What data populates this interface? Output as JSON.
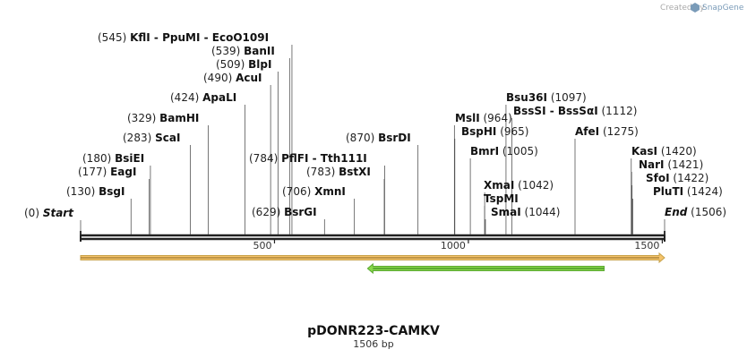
{
  "credit": {
    "prefix": "Created by",
    "brand": "SnapGene"
  },
  "sequence": {
    "name": "pDONR223-CAMKV",
    "length_label": "1506 bp",
    "length": 1506
  },
  "axis": {
    "ticks": [
      {
        "pos": 500,
        "label": "500"
      },
      {
        "pos": 1000,
        "label": "1000"
      },
      {
        "pos": 1500,
        "label": "1500"
      }
    ]
  },
  "features": [
    {
      "name": "orange-feature",
      "start": 0,
      "end": 1506,
      "color": "#f5c36b",
      "border": "#c8a24a",
      "direction": "forward"
    },
    {
      "name": "green-feature",
      "start": 740,
      "end": 1350,
      "color": "#88d84a",
      "border": "#5aa832",
      "direction": "reverse"
    }
  ],
  "sites": [
    {
      "id": "start",
      "pos": 0,
      "pos_label": "(0)",
      "text": "Start",
      "italic": true
    },
    {
      "id": "bsgi",
      "pos": 130,
      "pos_label": "(130)",
      "text": "BsgI"
    },
    {
      "id": "eagi",
      "pos": 177,
      "pos_label": "(177)",
      "text": "EagI"
    },
    {
      "id": "bsiei",
      "pos": 180,
      "pos_label": "(180)",
      "text": "BsiEI"
    },
    {
      "id": "scai",
      "pos": 283,
      "pos_label": "(283)",
      "text": "ScaI"
    },
    {
      "id": "bamhi",
      "pos": 329,
      "pos_label": "(329)",
      "text": "BamHI"
    },
    {
      "id": "apali",
      "pos": 424,
      "pos_label": "(424)",
      "text": "ApaLI"
    },
    {
      "id": "acui",
      "pos": 490,
      "pos_label": "(490)",
      "text": "AcuI"
    },
    {
      "id": "blpi",
      "pos": 509,
      "pos_label": "(509)",
      "text": "BlpI"
    },
    {
      "id": "banii",
      "pos": 539,
      "pos_label": "(539)",
      "text": "BanII"
    },
    {
      "id": "kfli",
      "pos": 545,
      "pos_label": "(545)",
      "text": "KflI  -  PpuMI  -  EcoO109I"
    },
    {
      "id": "bsrgi",
      "pos": 629,
      "pos_label": "(629)",
      "text": "BsrGI"
    },
    {
      "id": "xmni",
      "pos": 706,
      "pos_label": "(706)",
      "text": "XmnI"
    },
    {
      "id": "bstxi",
      "pos": 783,
      "pos_label": "(783)",
      "text": "BstXI"
    },
    {
      "id": "pflfi",
      "pos": 784,
      "pos_label": "(784)",
      "text": "PflFI  -  Tth111I"
    },
    {
      "id": "bsrdi",
      "pos": 870,
      "pos_label": "(870)",
      "text": "BsrDI"
    },
    {
      "id": "msli",
      "pos": 964,
      "pos_label": "(964)",
      "text": "MslI"
    },
    {
      "id": "bsphi",
      "pos": 965,
      "pos_label": "(965)",
      "text": "BspHI"
    },
    {
      "id": "bmri",
      "pos": 1005,
      "pos_label": "(1005)",
      "text": "BmrI"
    },
    {
      "id": "xmai",
      "pos": 1042,
      "pos_label": "(1042)",
      "text": "XmaI"
    },
    {
      "id": "tspmi",
      "pos": 1042,
      "pos_label": "",
      "text": "TspMI"
    },
    {
      "id": "smai",
      "pos": 1044,
      "pos_label": "(1044)",
      "text": "SmaI"
    },
    {
      "id": "bsu36i",
      "pos": 1097,
      "pos_label": "(1097)",
      "text": "Bsu36I"
    },
    {
      "id": "bsssi",
      "pos": 1112,
      "pos_label": "(1112)",
      "text": "BssSI  -  BssSαI"
    },
    {
      "id": "afei",
      "pos": 1275,
      "pos_label": "(1275)",
      "text": "AfeI"
    },
    {
      "id": "kasi",
      "pos": 1420,
      "pos_label": "(1420)",
      "text": "KasI"
    },
    {
      "id": "nari",
      "pos": 1421,
      "pos_label": "(1421)",
      "text": "NarI"
    },
    {
      "id": "sfoi",
      "pos": 1422,
      "pos_label": "(1422)",
      "text": "SfoI"
    },
    {
      "id": "pluti",
      "pos": 1424,
      "pos_label": "(1424)",
      "text": "PluTI"
    },
    {
      "id": "end",
      "pos": 1506,
      "pos_label": "(1506)",
      "text": "End",
      "italic": true
    }
  ]
}
